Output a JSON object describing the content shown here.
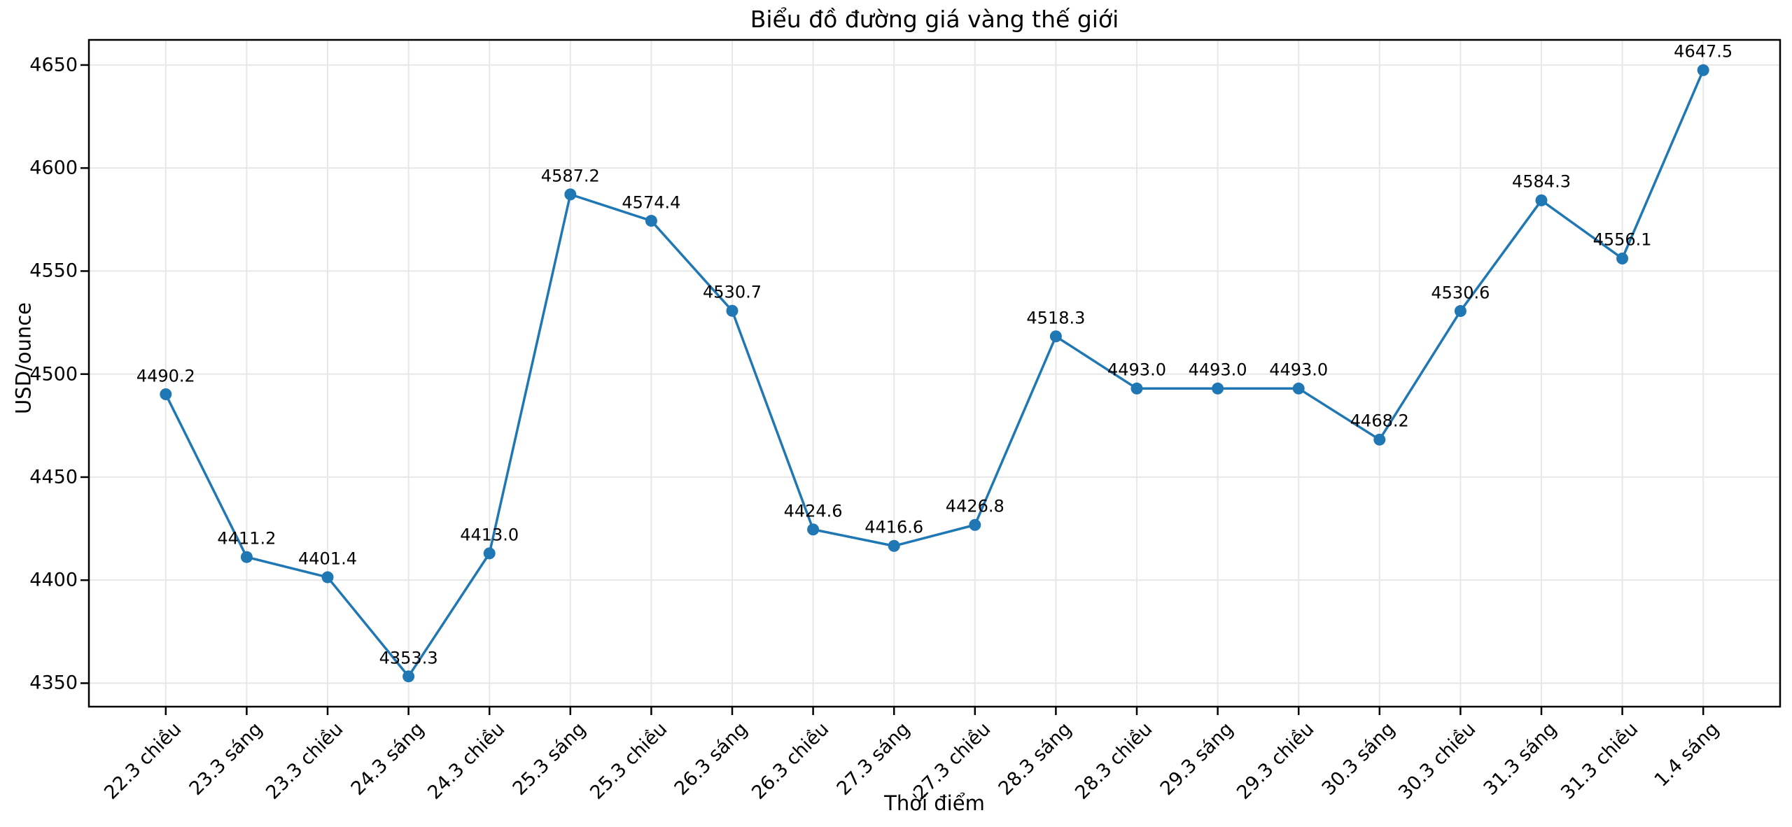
{
  "chart_data": {
    "type": "line",
    "title": "Biểu đồ đường giá vàng thế giới",
    "xlabel": "Thời điểm",
    "ylabel": "USD/ounce",
    "categories": [
      "22.3 chiều",
      "23.3 sáng",
      "23.3 chiều",
      "24.3 sáng",
      "24.3 chiều",
      "25.3 sáng",
      "25.3 chiều",
      "26.3 sáng",
      "26.3 chiều",
      "27.3 sáng",
      "27.3 chiều",
      "28.3 sáng",
      "28.3 chiều",
      "29.3 sáng",
      "29.3 chiều",
      "30.3 sáng",
      "30.3 chiều",
      "31.3 sáng",
      "31.3 chiều",
      "1.4 sáng"
    ],
    "values": [
      4490.2,
      4411.2,
      4401.4,
      4353.3,
      4413.0,
      4587.2,
      4574.4,
      4530.7,
      4424.6,
      4416.6,
      4426.8,
      4518.3,
      4493.0,
      4493.0,
      4493.0,
      4468.2,
      4530.6,
      4584.3,
      4556.1,
      4647.5
    ],
    "point_labels": [
      "4490.2",
      "4411.2",
      "4401.4",
      "4353.3",
      "4413.0",
      "4587.2",
      "4574.4",
      "4530.7",
      "4424.6",
      "4416.6",
      "4426.8",
      "4518.3",
      "4493.0",
      "4493.0",
      "4493.0",
      "4468.2",
      "4530.6",
      "4584.3",
      "4556.1",
      "4647.5"
    ],
    "yticks": [
      4350,
      4400,
      4450,
      4500,
      4550,
      4600,
      4650
    ],
    "ylim": [
      4338.6,
      4662.2
    ],
    "xlim": [
      -0.95,
      19.95
    ],
    "grid": true,
    "legend": "none",
    "line_color": "#1f77b4",
    "marker": "circle",
    "marker_color": "#1f77b4",
    "grid_color": "#e7e7e7",
    "spine_color": "#000000",
    "text_color": "#000000",
    "background_color": "#ffffff"
  }
}
